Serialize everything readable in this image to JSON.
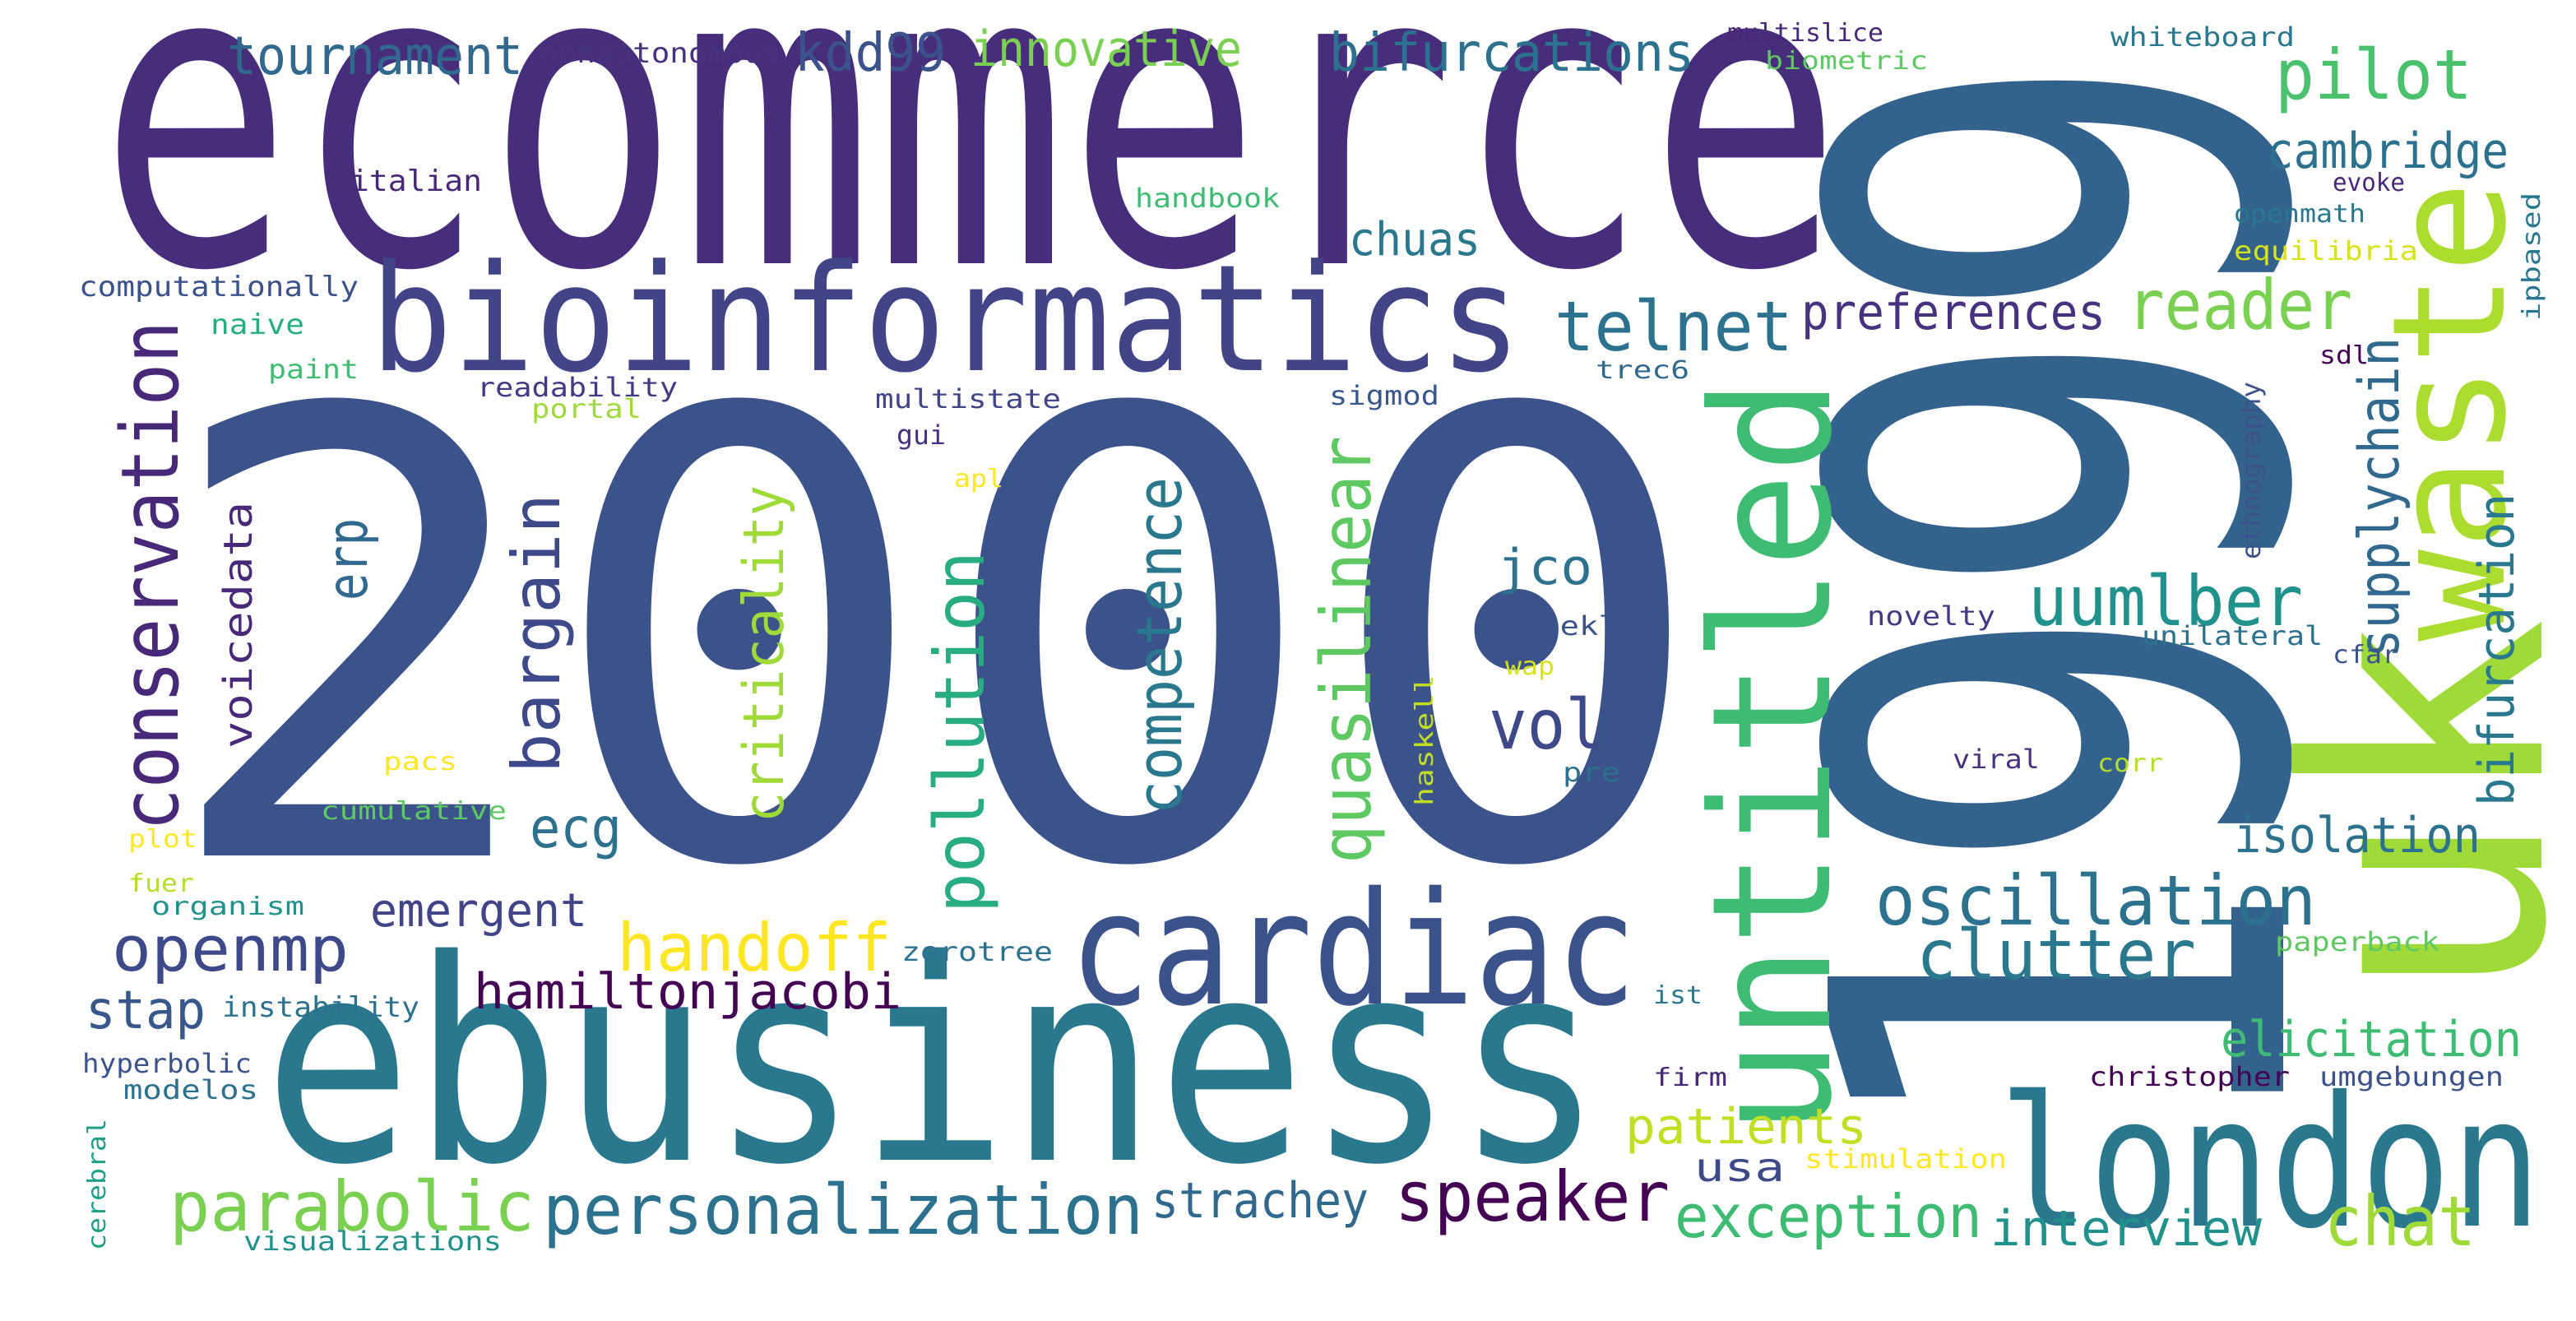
{
  "words": [
    "ecommerce",
    "2000",
    "1999",
    "uk",
    "waste",
    "untitled",
    "bioinformatics",
    "ebusiness",
    "cardiac",
    "london",
    "conservation",
    "tournament",
    "nonautonomous",
    "kdd99",
    "innovative",
    "bifurcations",
    "multislice",
    "biometric",
    "whiteboard",
    "pilot",
    "cambridge",
    "evoke",
    "openmath",
    "ipbased",
    "equilibria",
    "italian",
    "handbook",
    "chuas",
    "computationally",
    "naive",
    "paint",
    "readability",
    "portal",
    "multistate",
    "gui",
    "apl",
    "sigmod",
    "telnet",
    "preferences",
    "reader",
    "trec6",
    "sdl",
    "supplychain",
    "ethnography",
    "bifurcation",
    "uumlber",
    "novelty",
    "unilateral",
    "cfar",
    "erp",
    "voicedata",
    "bargain",
    "criticality",
    "pollution",
    "competence",
    "quasilinear",
    "jco",
    "weekly",
    "wap",
    "haskell",
    "vol",
    "pre",
    "viral",
    "corr",
    "isolation",
    "pacs",
    "cumulative",
    "plot",
    "ecg",
    "fuer",
    "organism",
    "emergent",
    "oscillation",
    "handoff",
    "zerotree",
    "clutter",
    "paperback",
    "openmp",
    "stap",
    "instability",
    "hamiltonjacobi",
    "ist",
    "elicitation",
    "hyperbolic",
    "modelos",
    "firm",
    "christopher",
    "umgebungen",
    "cerebral",
    "patients",
    "stimulation",
    "usa",
    "parabolic",
    "personalization",
    "strachey",
    "speaker",
    "exception",
    "interview",
    "chat",
    "visualizations"
  ]
}
